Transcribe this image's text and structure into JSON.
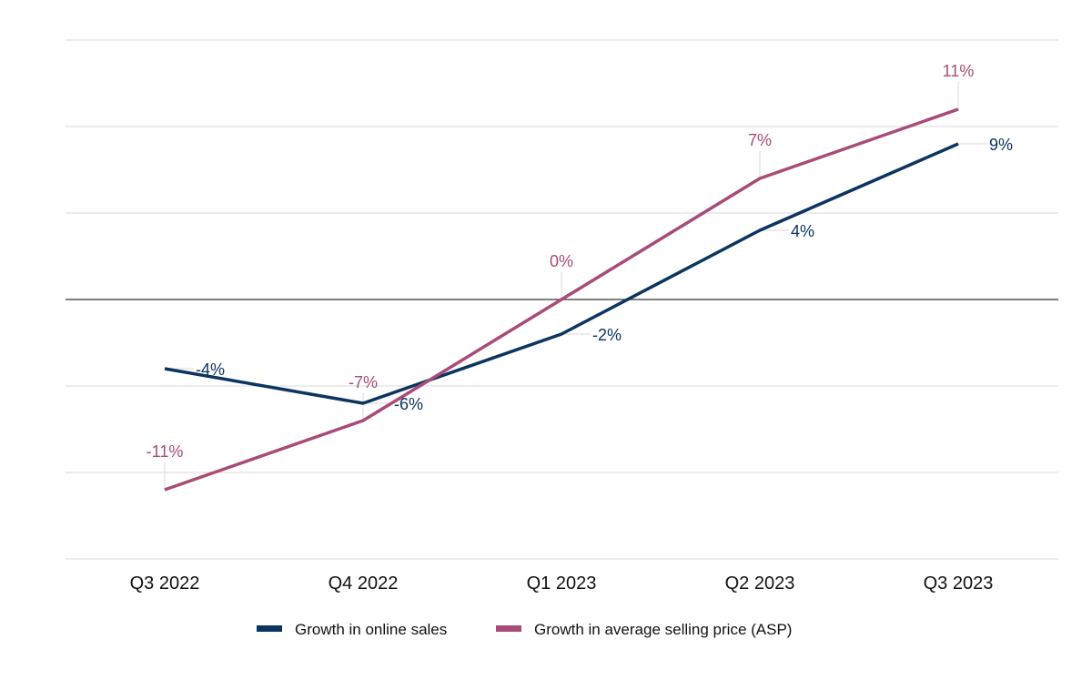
{
  "chart_data": {
    "type": "line",
    "title": "",
    "xlabel": "",
    "ylabel": "",
    "categories": [
      "Q3 2022",
      "Q4 2022",
      "Q1 2023",
      "Q2 2023",
      "Q3 2023"
    ],
    "ylim": [
      -15,
      15
    ],
    "grid": true,
    "zero_line": true,
    "legend_position": "bottom",
    "series": [
      {
        "name": "Growth in online sales",
        "color": "#0b3560",
        "values": [
          -4,
          -6,
          -2,
          4,
          9
        ],
        "labels": [
          "-4%",
          "-6%",
          "-2%",
          "4%",
          "9%"
        ],
        "label_position": "right"
      },
      {
        "name": "Growth in average selling price (ASP)",
        "color": "#a74b78",
        "values": [
          -11,
          -7,
          0,
          7,
          11
        ],
        "labels": [
          "-11%",
          "-7%",
          "0%",
          "7%",
          "11%"
        ],
        "label_position": "above"
      }
    ]
  }
}
